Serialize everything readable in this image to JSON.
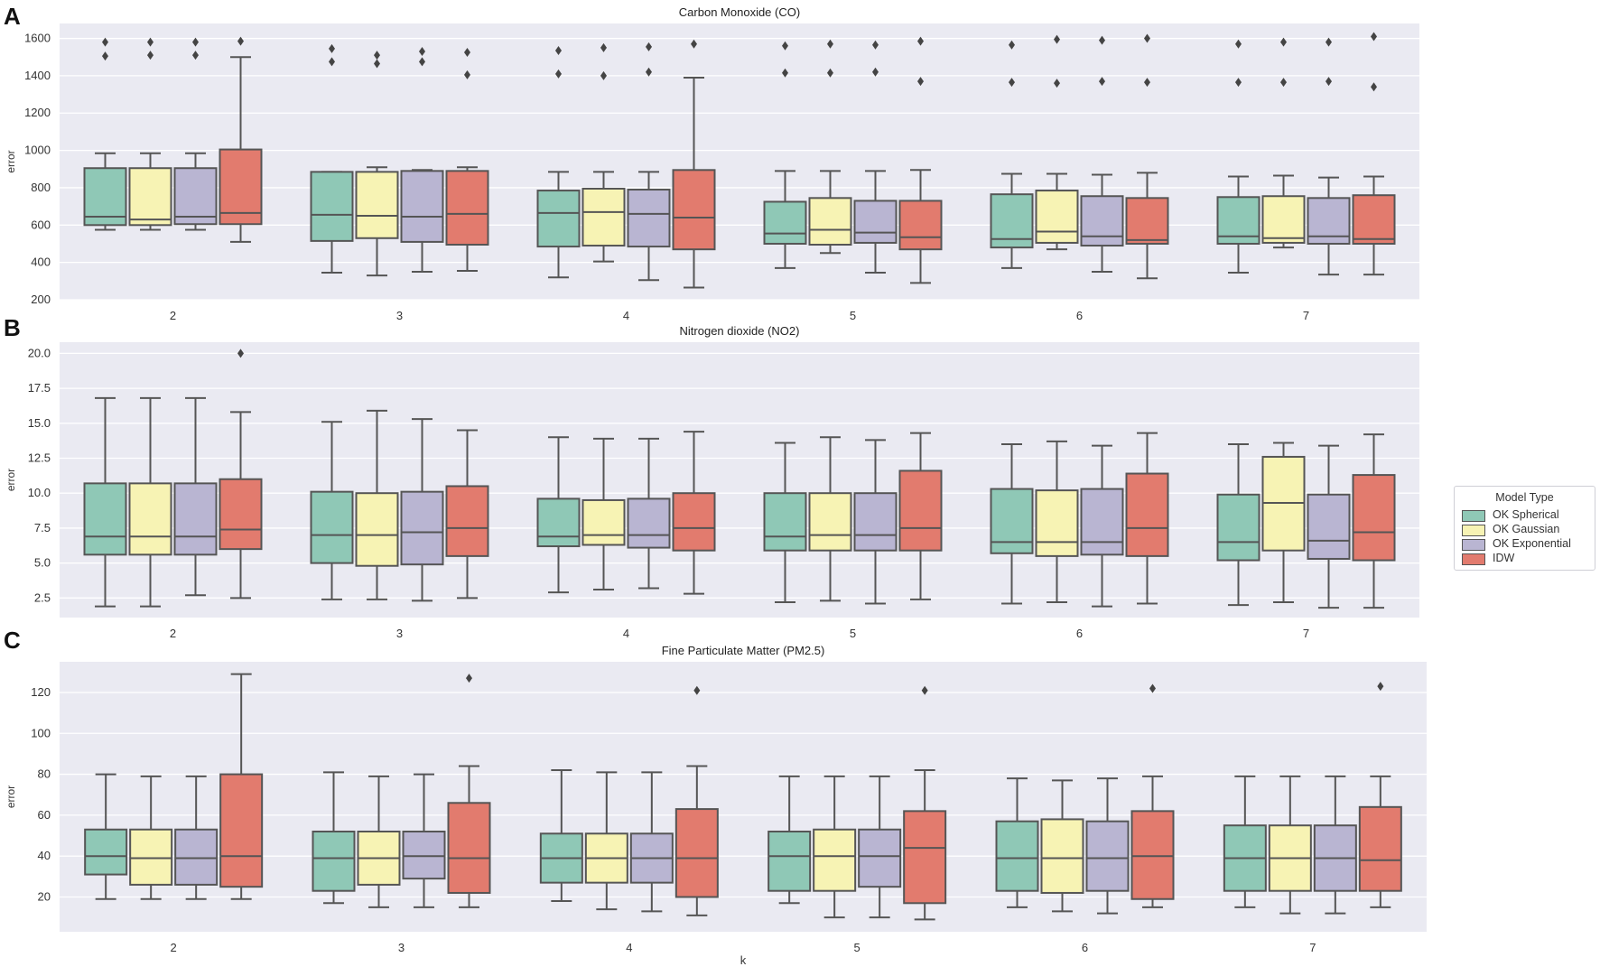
{
  "figure": {
    "panel_letters": [
      "A",
      "B",
      "C"
    ],
    "shared_xlabel": "k"
  },
  "legend": {
    "title": "Model Type",
    "items": [
      {
        "label": "OK Spherical",
        "color": "#8fc8b6"
      },
      {
        "label": "OK Gaussian",
        "color": "#f7f3b4"
      },
      {
        "label": "OK Exponential",
        "color": "#b9b5d2"
      },
      {
        "label": "IDW",
        "color": "#e27b6e"
      }
    ]
  },
  "chart_data": [
    {
      "type": "box",
      "title": "Carbon Monoxide (CO)",
      "xlabel": "",
      "ylabel": "error",
      "ylim": [
        200,
        1680
      ],
      "yticks": [
        200,
        400,
        600,
        800,
        1000,
        1200,
        1400,
        1600
      ],
      "ytick_labels": [
        "200",
        "400",
        "600",
        "800",
        "1000",
        "1200",
        "1400",
        "1600"
      ],
      "categories": [
        "2",
        "3",
        "4",
        "5",
        "6",
        "7"
      ],
      "series": [
        {
          "name": "OK Spherical",
          "boxes": [
            {
              "whislo": 575,
              "q1": 600,
              "med": 645,
              "q3": 905,
              "whishi": 985,
              "fliers": [
                1505,
                1580
              ]
            },
            {
              "whislo": 345,
              "q1": 515,
              "med": 655,
              "q3": 885,
              "whishi": 885,
              "fliers": [
                1475,
                1545
              ]
            },
            {
              "whislo": 320,
              "q1": 485,
              "med": 665,
              "q3": 785,
              "whishi": 885,
              "fliers": [
                1410,
                1535
              ]
            },
            {
              "whislo": 370,
              "q1": 500,
              "med": 555,
              "q3": 725,
              "whishi": 890,
              "fliers": [
                1415,
                1560
              ]
            },
            {
              "whislo": 370,
              "q1": 480,
              "med": 525,
              "q3": 765,
              "whishi": 875,
              "fliers": [
                1365,
                1565
              ]
            },
            {
              "whislo": 345,
              "q1": 500,
              "med": 540,
              "q3": 750,
              "whishi": 860,
              "fliers": [
                1365,
                1570
              ]
            }
          ]
        },
        {
          "name": "OK Gaussian",
          "boxes": [
            {
              "whislo": 575,
              "q1": 600,
              "med": 630,
              "q3": 905,
              "whishi": 985,
              "fliers": [
                1510,
                1580
              ]
            },
            {
              "whislo": 330,
              "q1": 530,
              "med": 650,
              "q3": 885,
              "whishi": 910,
              "fliers": [
                1465,
                1510
              ]
            },
            {
              "whislo": 405,
              "q1": 490,
              "med": 670,
              "q3": 795,
              "whishi": 885,
              "fliers": [
                1400,
                1550
              ]
            },
            {
              "whislo": 450,
              "q1": 495,
              "med": 575,
              "q3": 745,
              "whishi": 890,
              "fliers": [
                1415,
                1570
              ]
            },
            {
              "whislo": 470,
              "q1": 505,
              "med": 565,
              "q3": 785,
              "whishi": 875,
              "fliers": [
                1360,
                1595
              ]
            },
            {
              "whislo": 480,
              "q1": 505,
              "med": 530,
              "q3": 755,
              "whishi": 865,
              "fliers": [
                1365,
                1580
              ]
            }
          ]
        },
        {
          "name": "OK Exponential",
          "boxes": [
            {
              "whislo": 575,
              "q1": 605,
              "med": 645,
              "q3": 905,
              "whishi": 985,
              "fliers": [
                1510,
                1580
              ]
            },
            {
              "whislo": 350,
              "q1": 510,
              "med": 645,
              "q3": 890,
              "whishi": 895,
              "fliers": [
                1475,
                1530
              ]
            },
            {
              "whislo": 305,
              "q1": 485,
              "med": 660,
              "q3": 790,
              "whishi": 885,
              "fliers": [
                1420,
                1555
              ]
            },
            {
              "whislo": 345,
              "q1": 505,
              "med": 560,
              "q3": 730,
              "whishi": 890,
              "fliers": [
                1420,
                1565
              ]
            },
            {
              "whislo": 350,
              "q1": 490,
              "med": 540,
              "q3": 755,
              "whishi": 870,
              "fliers": [
                1370,
                1590
              ]
            },
            {
              "whislo": 335,
              "q1": 500,
              "med": 540,
              "q3": 745,
              "whishi": 855,
              "fliers": [
                1370,
                1580
              ]
            }
          ]
        },
        {
          "name": "IDW",
          "boxes": [
            {
              "whislo": 510,
              "q1": 605,
              "med": 665,
              "q3": 1005,
              "whishi": 1500,
              "fliers": [
                1585
              ]
            },
            {
              "whislo": 355,
              "q1": 495,
              "med": 660,
              "q3": 890,
              "whishi": 910,
              "fliers": [
                1405,
                1525
              ]
            },
            {
              "whislo": 265,
              "q1": 470,
              "med": 640,
              "q3": 895,
              "whishi": 1390,
              "fliers": [
                1570
              ]
            },
            {
              "whislo": 290,
              "q1": 470,
              "med": 535,
              "q3": 730,
              "whishi": 895,
              "fliers": [
                1370,
                1585
              ]
            },
            {
              "whislo": 315,
              "q1": 500,
              "med": 520,
              "q3": 745,
              "whishi": 880,
              "fliers": [
                1365,
                1600
              ]
            },
            {
              "whislo": 335,
              "q1": 500,
              "med": 525,
              "q3": 760,
              "whishi": 860,
              "fliers": [
                1340,
                1610
              ]
            }
          ]
        }
      ]
    },
    {
      "type": "box",
      "title": "Nitrogen dioxide (NO2)",
      "xlabel": "",
      "ylabel": "error",
      "ylim": [
        1.1,
        20.8
      ],
      "yticks": [
        2.5,
        5.0,
        7.5,
        10.0,
        12.5,
        15.0,
        17.5,
        20.0
      ],
      "ytick_labels": [
        "2.5",
        "5.0",
        "7.5",
        "10.0",
        "12.5",
        "15.0",
        "17.5",
        "20.0"
      ],
      "categories": [
        "2",
        "3",
        "4",
        "5",
        "6",
        "7"
      ],
      "series": [
        {
          "name": "OK Spherical",
          "boxes": [
            {
              "whislo": 1.9,
              "q1": 5.6,
              "med": 6.9,
              "q3": 10.7,
              "whishi": 16.8,
              "fliers": []
            },
            {
              "whislo": 2.4,
              "q1": 5.0,
              "med": 7.0,
              "q3": 10.1,
              "whishi": 15.1,
              "fliers": []
            },
            {
              "whislo": 2.9,
              "q1": 6.2,
              "med": 6.9,
              "q3": 9.6,
              "whishi": 14.0,
              "fliers": []
            },
            {
              "whislo": 2.2,
              "q1": 5.9,
              "med": 6.9,
              "q3": 10.0,
              "whishi": 13.6,
              "fliers": []
            },
            {
              "whislo": 2.1,
              "q1": 5.7,
              "med": 6.5,
              "q3": 10.3,
              "whishi": 13.5,
              "fliers": []
            },
            {
              "whislo": 2.0,
              "q1": 5.2,
              "med": 6.5,
              "q3": 9.9,
              "whishi": 13.5,
              "fliers": []
            }
          ]
        },
        {
          "name": "OK Gaussian",
          "boxes": [
            {
              "whislo": 1.9,
              "q1": 5.6,
              "med": 6.9,
              "q3": 10.7,
              "whishi": 16.8,
              "fliers": []
            },
            {
              "whislo": 2.4,
              "q1": 4.8,
              "med": 7.0,
              "q3": 10.0,
              "whishi": 15.9,
              "fliers": []
            },
            {
              "whislo": 3.1,
              "q1": 6.3,
              "med": 7.0,
              "q3": 9.5,
              "whishi": 13.9,
              "fliers": []
            },
            {
              "whislo": 2.3,
              "q1": 5.9,
              "med": 7.0,
              "q3": 10.0,
              "whishi": 14.0,
              "fliers": []
            },
            {
              "whislo": 2.2,
              "q1": 5.5,
              "med": 6.5,
              "q3": 10.2,
              "whishi": 13.7,
              "fliers": []
            },
            {
              "whislo": 2.2,
              "q1": 5.9,
              "med": 9.3,
              "q3": 12.6,
              "whishi": 13.6,
              "fliers": []
            }
          ]
        },
        {
          "name": "OK Exponential",
          "boxes": [
            {
              "whislo": 2.7,
              "q1": 5.6,
              "med": 6.9,
              "q3": 10.7,
              "whishi": 16.8,
              "fliers": []
            },
            {
              "whislo": 2.3,
              "q1": 4.9,
              "med": 7.2,
              "q3": 10.1,
              "whishi": 15.3,
              "fliers": []
            },
            {
              "whislo": 3.2,
              "q1": 6.1,
              "med": 7.0,
              "q3": 9.6,
              "whishi": 13.9,
              "fliers": []
            },
            {
              "whislo": 2.1,
              "q1": 5.9,
              "med": 7.0,
              "q3": 10.0,
              "whishi": 13.8,
              "fliers": []
            },
            {
              "whislo": 1.9,
              "q1": 5.6,
              "med": 6.5,
              "q3": 10.3,
              "whishi": 13.4,
              "fliers": []
            },
            {
              "whislo": 1.8,
              "q1": 5.3,
              "med": 6.6,
              "q3": 9.9,
              "whishi": 13.4,
              "fliers": []
            }
          ]
        },
        {
          "name": "IDW",
          "boxes": [
            {
              "whislo": 2.5,
              "q1": 6.0,
              "med": 7.4,
              "q3": 11.0,
              "whishi": 15.8,
              "fliers": [
                20.0
              ]
            },
            {
              "whislo": 2.5,
              "q1": 5.5,
              "med": 7.5,
              "q3": 10.5,
              "whishi": 14.5,
              "fliers": []
            },
            {
              "whislo": 2.8,
              "q1": 5.9,
              "med": 7.5,
              "q3": 10.0,
              "whishi": 14.4,
              "fliers": []
            },
            {
              "whislo": 2.4,
              "q1": 5.9,
              "med": 7.5,
              "q3": 11.6,
              "whishi": 14.3,
              "fliers": []
            },
            {
              "whislo": 2.1,
              "q1": 5.5,
              "med": 7.5,
              "q3": 11.4,
              "whishi": 14.3,
              "fliers": []
            },
            {
              "whislo": 1.8,
              "q1": 5.2,
              "med": 7.2,
              "q3": 11.3,
              "whishi": 14.2,
              "fliers": []
            }
          ]
        }
      ]
    },
    {
      "type": "box",
      "title": "Fine Particulate Matter (PM2.5)",
      "xlabel": "k",
      "ylabel": "error",
      "ylim": [
        3,
        135
      ],
      "yticks": [
        20,
        40,
        60,
        80,
        100,
        120
      ],
      "ytick_labels": [
        "20",
        "40",
        "60",
        "80",
        "100",
        "120"
      ],
      "categories": [
        "2",
        "3",
        "4",
        "5",
        "6",
        "7"
      ],
      "series": [
        {
          "name": "OK Spherical",
          "boxes": [
            {
              "whislo": 19,
              "q1": 31,
              "med": 40,
              "q3": 53,
              "whishi": 80,
              "fliers": []
            },
            {
              "whislo": 17,
              "q1": 23,
              "med": 39,
              "q3": 52,
              "whishi": 81,
              "fliers": []
            },
            {
              "whislo": 18,
              "q1": 27,
              "med": 39,
              "q3": 51,
              "whishi": 82,
              "fliers": []
            },
            {
              "whislo": 17,
              "q1": 23,
              "med": 40,
              "q3": 52,
              "whishi": 79,
              "fliers": []
            },
            {
              "whislo": 15,
              "q1": 23,
              "med": 39,
              "q3": 57,
              "whishi": 78,
              "fliers": []
            },
            {
              "whislo": 15,
              "q1": 23,
              "med": 39,
              "q3": 55,
              "whishi": 79,
              "fliers": []
            }
          ]
        },
        {
          "name": "OK Gaussian",
          "boxes": [
            {
              "whislo": 19,
              "q1": 26,
              "med": 39,
              "q3": 53,
              "whishi": 79,
              "fliers": []
            },
            {
              "whislo": 15,
              "q1": 26,
              "med": 39,
              "q3": 52,
              "whishi": 79,
              "fliers": []
            },
            {
              "whislo": 14,
              "q1": 27,
              "med": 39,
              "q3": 51,
              "whishi": 81,
              "fliers": []
            },
            {
              "whislo": 10,
              "q1": 23,
              "med": 40,
              "q3": 53,
              "whishi": 79,
              "fliers": []
            },
            {
              "whislo": 13,
              "q1": 22,
              "med": 39,
              "q3": 58,
              "whishi": 77,
              "fliers": []
            },
            {
              "whislo": 12,
              "q1": 23,
              "med": 39,
              "q3": 55,
              "whishi": 79,
              "fliers": []
            }
          ]
        },
        {
          "name": "OK Exponential",
          "boxes": [
            {
              "whislo": 19,
              "q1": 26,
              "med": 39,
              "q3": 53,
              "whishi": 79,
              "fliers": []
            },
            {
              "whislo": 15,
              "q1": 29,
              "med": 40,
              "q3": 52,
              "whishi": 80,
              "fliers": []
            },
            {
              "whislo": 13,
              "q1": 27,
              "med": 39,
              "q3": 51,
              "whishi": 81,
              "fliers": []
            },
            {
              "whislo": 10,
              "q1": 25,
              "med": 40,
              "q3": 53,
              "whishi": 79,
              "fliers": []
            },
            {
              "whislo": 12,
              "q1": 23,
              "med": 39,
              "q3": 57,
              "whishi": 78,
              "fliers": []
            },
            {
              "whislo": 12,
              "q1": 23,
              "med": 39,
              "q3": 55,
              "whishi": 79,
              "fliers": []
            }
          ]
        },
        {
          "name": "IDW",
          "boxes": [
            {
              "whislo": 19,
              "q1": 25,
              "med": 40,
              "q3": 80,
              "whishi": 129,
              "fliers": []
            },
            {
              "whislo": 15,
              "q1": 22,
              "med": 39,
              "q3": 66,
              "whishi": 84,
              "fliers": [
                127
              ]
            },
            {
              "whislo": 11,
              "q1": 20,
              "med": 39,
              "q3": 63,
              "whishi": 84,
              "fliers": [
                121
              ]
            },
            {
              "whislo": 9,
              "q1": 17,
              "med": 44,
              "q3": 62,
              "whishi": 82,
              "fliers": [
                121
              ]
            },
            {
              "whislo": 15,
              "q1": 19,
              "med": 40,
              "q3": 62,
              "whishi": 79,
              "fliers": [
                122
              ]
            },
            {
              "whislo": 15,
              "q1": 23,
              "med": 38,
              "q3": 64,
              "whishi": 79,
              "fliers": [
                123
              ]
            }
          ]
        }
      ]
    }
  ]
}
